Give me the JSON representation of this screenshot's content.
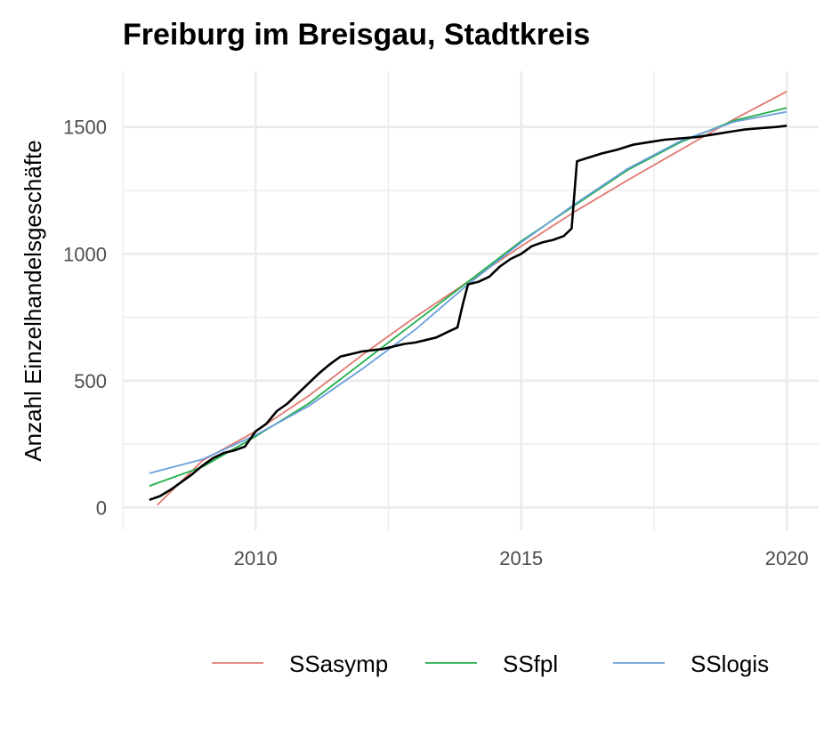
{
  "chart_data": {
    "type": "line",
    "title": "Freiburg im Breisgau, Stadtkreis",
    "xlabel": "",
    "ylabel": "Anzahl Einzelhandelsgeschäfte",
    "xlim": [
      2007.5,
      2020.6
    ],
    "ylim": [
      -90,
      1720
    ],
    "x_ticks": [
      2010,
      2015,
      2020
    ],
    "y_ticks": [
      0,
      500,
      1000,
      1500
    ],
    "grid": true,
    "legend_position": "bottom",
    "colors": {
      "observed": "#000000",
      "SSasymp": "#e07a70",
      "SSfpl": "#1fae4a",
      "SSlogis": "#6a9fdc",
      "grid": "#ebebeb"
    },
    "observed": {
      "x": [
        2008.0,
        2008.2,
        2008.4,
        2008.6,
        2008.8,
        2009.0,
        2009.2,
        2009.4,
        2009.6,
        2009.8,
        2010.0,
        2010.2,
        2010.4,
        2010.6,
        2010.8,
        2011.0,
        2011.2,
        2011.4,
        2011.6,
        2011.8,
        2012.0,
        2012.2,
        2012.4,
        2012.6,
        2012.8,
        2013.0,
        2013.2,
        2013.4,
        2013.6,
        2013.8,
        2013.9,
        2014.0,
        2014.2,
        2014.4,
        2014.6,
        2014.8,
        2015.0,
        2015.2,
        2015.4,
        2015.6,
        2015.8,
        2015.95,
        2016.05,
        2016.2,
        2016.5,
        2016.8,
        2017.1,
        2017.4,
        2017.7,
        2018.0,
        2018.3,
        2018.6,
        2018.9,
        2019.2,
        2019.5,
        2019.8,
        2020.0
      ],
      "y": [
        30,
        45,
        70,
        100,
        130,
        165,
        195,
        215,
        225,
        240,
        300,
        330,
        380,
        410,
        450,
        490,
        530,
        565,
        595,
        605,
        615,
        620,
        625,
        635,
        645,
        650,
        660,
        670,
        690,
        710,
        800,
        880,
        890,
        910,
        950,
        980,
        1000,
        1030,
        1045,
        1055,
        1070,
        1100,
        1365,
        1375,
        1395,
        1410,
        1430,
        1440,
        1450,
        1455,
        1460,
        1470,
        1480,
        1490,
        1495,
        1500,
        1505
      ]
    },
    "series": [
      {
        "name": "SSasymp",
        "x": [
          2008.15,
          2009,
          2010,
          2011,
          2012,
          2013,
          2014,
          2015,
          2016,
          2017,
          2018,
          2019,
          2020
        ],
        "y": [
          10,
          185,
          300,
          440,
          600,
          750,
          890,
          1030,
          1165,
          1290,
          1410,
          1530,
          1640
        ]
      },
      {
        "name": "SSfpl",
        "x": [
          2008.0,
          2009,
          2010,
          2011,
          2012,
          2013,
          2014,
          2015,
          2016,
          2017,
          2018,
          2019,
          2020
        ],
        "y": [
          85,
          160,
          280,
          410,
          570,
          730,
          890,
          1050,
          1190,
          1330,
          1440,
          1525,
          1575
        ]
      },
      {
        "name": "SSlogis",
        "x": [
          2008.0,
          2009,
          2010,
          2011,
          2012,
          2013,
          2014,
          2015,
          2016,
          2017,
          2018,
          2019,
          2020
        ],
        "y": [
          135,
          190,
          285,
          400,
          545,
          700,
          880,
          1045,
          1195,
          1335,
          1445,
          1520,
          1560
        ]
      }
    ]
  }
}
